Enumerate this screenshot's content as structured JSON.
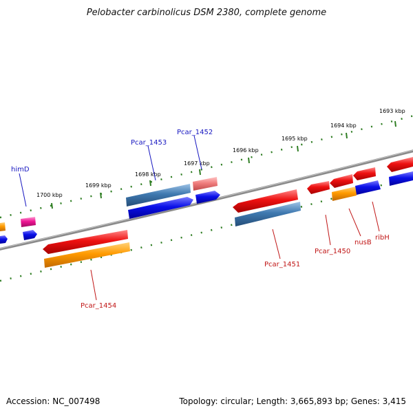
{
  "title": "Pelobacter carbinolicus DSM 2380, complete genome",
  "footer": {
    "accession": "Accession: NC_007498",
    "topology": "Topology: circular; Length: 3,665,893 bp; Genes: 3,415"
  },
  "colors": {
    "backbone": "#8a8a8a",
    "ticks": "#2e7d22",
    "plus_label": "#1515c0",
    "minus_label": "#c01515",
    "red": "#ee1111",
    "orange": "#ff9a00",
    "blue": "#0a10e8",
    "steelblue": "#3f79b0",
    "pink": "#f07e7e",
    "magenta": "#ee1493"
  },
  "kbp_labels": [
    "1693 kbp",
    "1694 kbp",
    "1695 kbp",
    "1696 kbp",
    "1697 kbp",
    "1698 kbp",
    "1699 kbp",
    "1700 kbp"
  ],
  "gene_labels": {
    "plus": [
      "himD",
      "Pcar_1453",
      "Pcar_1452"
    ],
    "minus": [
      "Pcar_1454",
      "Pcar_1451",
      "Pcar_1450",
      "nusB",
      "ribH"
    ]
  }
}
